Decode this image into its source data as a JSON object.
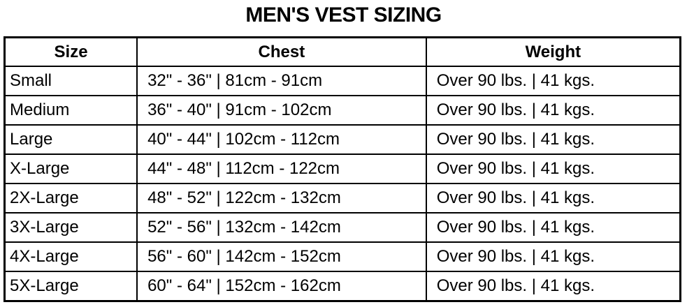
{
  "title": "MEN'S VEST SIZING",
  "table": {
    "headers": [
      "Size",
      "Chest",
      "Weight"
    ],
    "rows": [
      [
        "Small",
        "32\" - 36\" | 81cm - 91cm",
        "Over 90 lbs. | 41 kgs."
      ],
      [
        "Medium",
        "36\" - 40\" | 91cm - 102cm",
        "Over 90 lbs. | 41 kgs."
      ],
      [
        "Large",
        "40\" - 44\" | 102cm - 112cm",
        "Over 90 lbs. | 41 kgs."
      ],
      [
        "X-Large",
        "44\" - 48\" | 112cm - 122cm",
        "Over 90 lbs. | 41 kgs."
      ],
      [
        "2X-Large",
        "48\" - 52\" | 122cm - 132cm",
        "Over 90 lbs. | 41 kgs."
      ],
      [
        "3X-Large",
        "52\" - 56\" | 132cm - 142cm",
        "Over 90 lbs. | 41 kgs."
      ],
      [
        "4X-Large",
        "56\" - 60\" | 142cm - 152cm",
        "Over 90 lbs. | 41 kgs."
      ],
      [
        "5X-Large",
        "60\" - 64\" | 152cm - 162cm",
        "Over 90 lbs. | 41 kgs."
      ]
    ]
  }
}
